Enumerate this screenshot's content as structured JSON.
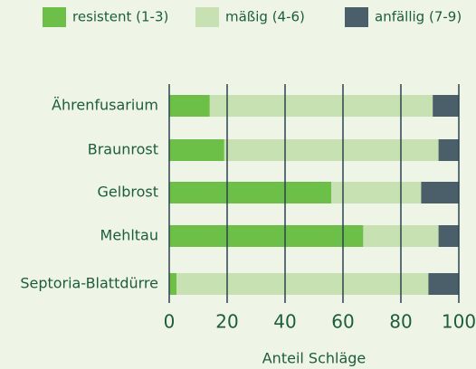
{
  "chart_data": {
    "type": "stacked-bar-horizontal",
    "categories": [
      "Ährenfusarium",
      "Braunrost",
      "Gelbrost",
      "Mehltau",
      "Septoria-Blattdürre"
    ],
    "series": [
      {
        "name": "resistent (1-3)",
        "color": "#6cbf47",
        "values": [
          14,
          19,
          56,
          67,
          2.5
        ]
      },
      {
        "name": "mäßig (4-6)",
        "color": "#c7e1b3",
        "values": [
          77,
          74,
          31,
          26,
          87
        ]
      },
      {
        "name": "anfällig (7-9)",
        "color": "#4b5f6b",
        "values": [
          9,
          7,
          13,
          7,
          10.5
        ]
      }
    ],
    "xlabel": "Anteil Schläge",
    "xlim": [
      0,
      100
    ],
    "xticks": [
      0,
      20,
      40,
      60,
      80,
      100
    ],
    "grid": true
  }
}
